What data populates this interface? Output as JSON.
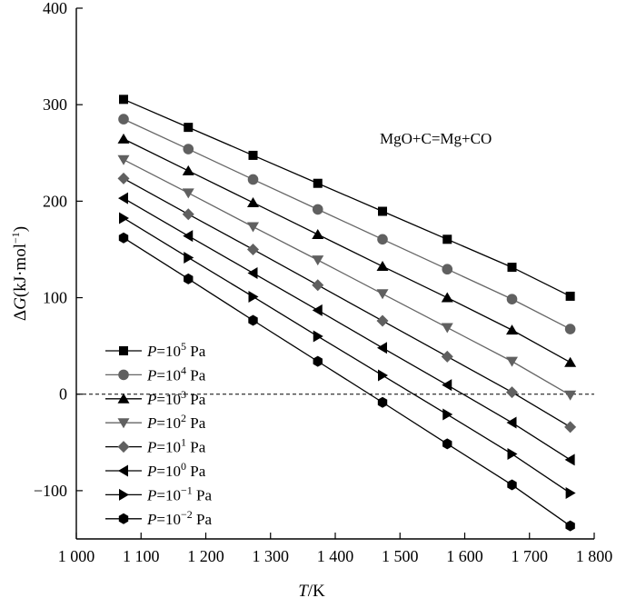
{
  "chart_data": {
    "type": "line",
    "title": "",
    "annotation": "MgO+C=Mg+CO",
    "xlabel": {
      "var": "T",
      "unit": "/K"
    },
    "ylabel": {
      "prefix": "ΔG",
      "var": "G",
      "unit": "(kJ·mol",
      "exp": "−1",
      "close": ")"
    },
    "xlim": [
      1000,
      1800
    ],
    "ylim": [
      -150,
      400
    ],
    "x_ticks": [
      1000,
      1100,
      1200,
      1300,
      1400,
      1500,
      1600,
      1700,
      1800
    ],
    "x_tick_labels": [
      "1 000",
      "1 100",
      "1 200",
      "1 300",
      "1 400",
      "1 500",
      "1 600",
      "1 700",
      "1 800"
    ],
    "y_ticks": [
      -100,
      0,
      100,
      200,
      300,
      400
    ],
    "y_tick_labels": [
      "−100",
      "0",
      "100",
      "200",
      "300",
      "400"
    ],
    "reference_line": {
      "y": 0,
      "style": "dashed"
    },
    "grid": false,
    "legend_position": "bottom-left",
    "x": [
      1073,
      1173,
      1273,
      1373,
      1473,
      1573,
      1673,
      1763
    ],
    "series": [
      {
        "name": "P=10^5 Pa",
        "label_base": "10",
        "label_exp": "5",
        "marker": "square",
        "line_color": "#000000",
        "values": [
          305.5,
          276.5,
          247.5,
          218.5,
          189.5,
          160.5,
          131.5,
          101.5
        ]
      },
      {
        "name": "P=10^4 Pa",
        "label_base": "10",
        "label_exp": "4",
        "marker": "circle",
        "line_color": "#666666",
        "values": [
          285,
          254,
          222.5,
          191.5,
          160.5,
          129.5,
          98.5,
          67.5
        ]
      },
      {
        "name": "P=10^3 Pa",
        "label_base": "10",
        "label_exp": "3",
        "marker": "triangle-up",
        "line_color": "#000000",
        "values": [
          264.5,
          231.5,
          198.5,
          165.5,
          132.5,
          100,
          66.5,
          33
        ]
      },
      {
        "name": "P=10^2 Pa",
        "label_base": "10",
        "label_exp": "2",
        "marker": "triangle-down",
        "line_color": "#666666",
        "values": [
          243,
          208.5,
          173.5,
          139,
          104,
          69,
          34,
          -1
        ]
      },
      {
        "name": "P=10^1 Pa",
        "label_base": "10",
        "label_exp": "1",
        "marker": "diamond",
        "line_color": "#000000",
        "values": [
          223.5,
          186.5,
          150,
          113,
          76,
          39,
          2,
          -34
        ]
      },
      {
        "name": "P=10^0 Pa",
        "label_base": "10",
        "label_exp": "0",
        "marker": "triangle-left",
        "line_color": "#000000",
        "values": [
          203,
          164,
          125.5,
          87,
          48,
          9.5,
          -29.5,
          -68
        ]
      },
      {
        "name": "P=10^-1 Pa",
        "label_base": "10",
        "label_exp": "−1",
        "marker": "triangle-right",
        "line_color": "#000000",
        "values": [
          182.5,
          141.5,
          101,
          60,
          19.5,
          -21,
          -62,
          -102.5
        ]
      },
      {
        "name": "P=10^-2 Pa",
        "label_base": "10",
        "label_exp": "−2",
        "marker": "hexagon",
        "line_color": "#000000",
        "values": [
          162,
          119.5,
          76.5,
          34,
          -8.5,
          -51.5,
          -94,
          -136.5
        ]
      }
    ],
    "legend_suffix": " Pa",
    "legend_var": "P",
    "colors": {
      "axis": "#000000",
      "marker_dark": "#000000",
      "marker_gray": "#606060",
      "line_gray": "#666666"
    }
  }
}
